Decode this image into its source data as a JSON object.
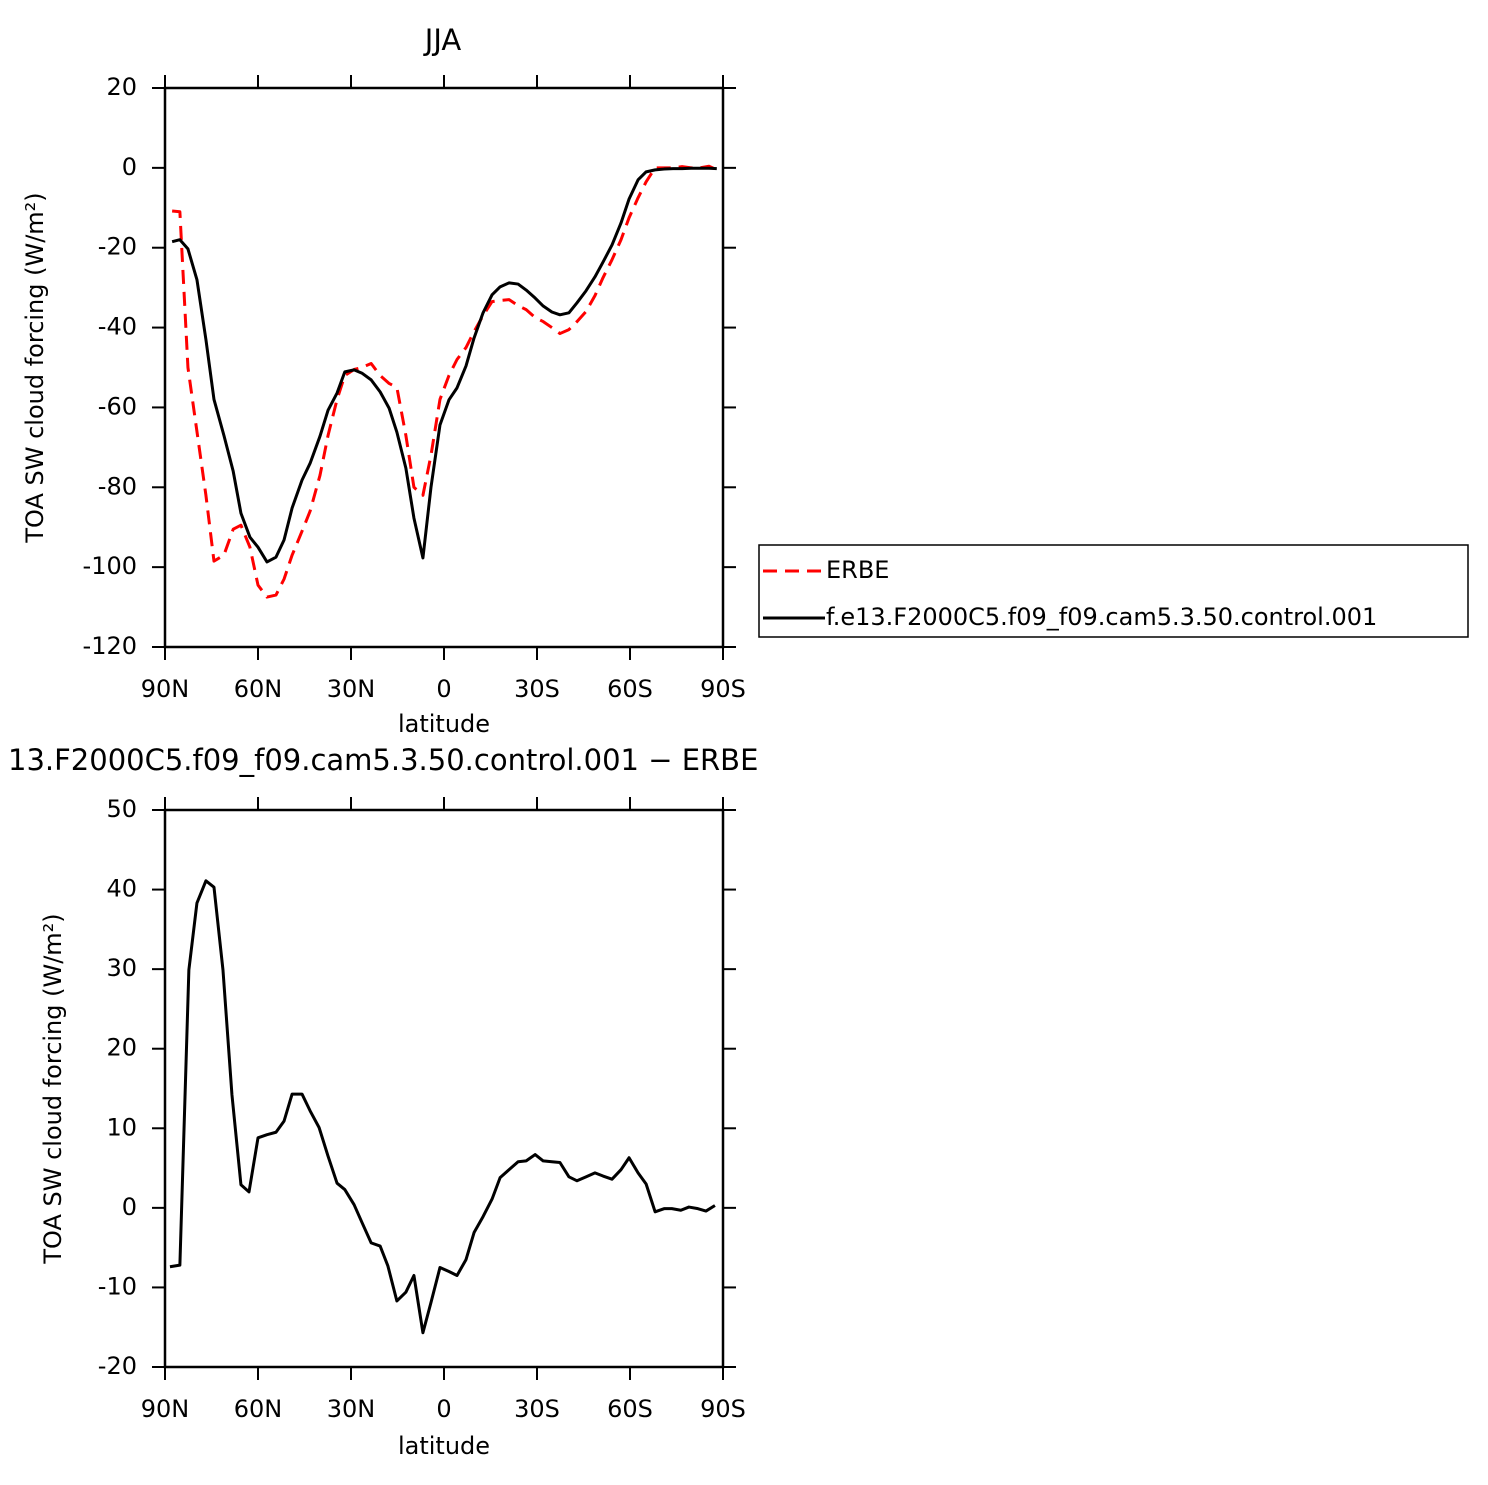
{
  "chart_data": [
    {
      "type": "line",
      "title": "JJA",
      "x_label": "latitude",
      "y_label": "TOA SW cloud forcing (W/m²)",
      "xlim": [
        90,
        -90
      ],
      "xticks": [
        {
          "value": 90,
          "label": "90N"
        },
        {
          "value": 60,
          "label": "60N"
        },
        {
          "value": 30,
          "label": "30N"
        },
        0,
        {
          "value": -30,
          "label": "30S"
        },
        {
          "value": -60,
          "label": "60S"
        },
        {
          "value": -90,
          "label": "90S"
        }
      ],
      "ylim": [
        -120,
        20
      ],
      "yticks": [
        -120,
        -100,
        -80,
        -60,
        -40,
        -20,
        0,
        20
      ],
      "legend": "right",
      "x": [
        87.7,
        85.2,
        82.6,
        79.7,
        76.8,
        74.2,
        71,
        68,
        65.5,
        62.6,
        60,
        57.1,
        54.2,
        51.6,
        49,
        45.8,
        43.2,
        40,
        37.4,
        34.5,
        32,
        29,
        26.5,
        23.5,
        20.6,
        17.7,
        15.2,
        12.3,
        9.7,
        6.8,
        4.2,
        1.3,
        -1.6,
        -4.2,
        -7.1,
        -9.7,
        -12.6,
        -15.5,
        -18.1,
        -21,
        -23.9,
        -26.5,
        -29.4,
        -32,
        -34.8,
        -37.4,
        -40.3,
        -42.9,
        -45.8,
        -48.7,
        -51.3,
        -54.2,
        -57.1,
        -59.7,
        -62.6,
        -65.2,
        -68.1,
        -71,
        -73.9,
        -76.8,
        -79.7,
        -82.6,
        -85.5,
        -88
      ],
      "series": [
        {
          "name": "ERBE",
          "color": "#ff0000",
          "dashed": true,
          "values": [
            -10.8,
            -11,
            -50,
            -66,
            -82,
            -98.5,
            -97,
            -90.5,
            -89.5,
            -95,
            -104.5,
            -107.5,
            -107,
            -103,
            -97,
            -91,
            -86,
            -77,
            -67,
            -58,
            -52,
            -50.5,
            -50,
            -49,
            -52,
            -54,
            -55,
            -67,
            -80,
            -82,
            -72,
            -58,
            -52,
            -48,
            -45,
            -41,
            -37,
            -33.5,
            -33.2,
            -33,
            -34.5,
            -35.5,
            -37.5,
            -38.5,
            -40,
            -41.5,
            -40.5,
            -38.5,
            -36,
            -32,
            -27.5,
            -23,
            -18,
            -12.5,
            -7.5,
            -3.5,
            0,
            0,
            0,
            0.3,
            0,
            0,
            0.4,
            -0.5
          ]
        },
        {
          "name": "f.e13.F2000C5.f09_f09.cam5.3.50.control.001",
          "color": "#000000",
          "dashed": false,
          "values": [
            -18.5,
            -18,
            -20.3,
            -28,
            -43,
            -58,
            -67,
            -76,
            -86.5,
            -92.5,
            -95,
            -98.7,
            -97.5,
            -93.2,
            -85.2,
            -78.2,
            -74,
            -67.2,
            -60.7,
            -56.4,
            -51.1,
            -50.6,
            -51.4,
            -53.1,
            -56.1,
            -60.2,
            -66.2,
            -75.2,
            -87.7,
            -97.7,
            -80,
            -64.4,
            -58.1,
            -55.1,
            -49.6,
            -42.6,
            -36.3,
            -31.8,
            -29.8,
            -28.8,
            -29.1,
            -30.6,
            -32.6,
            -34.6,
            -36.1,
            -36.8,
            -36.3,
            -33.8,
            -30.8,
            -27.3,
            -23.6,
            -19.3,
            -13.8,
            -7.8,
            -3,
            -1,
            -0.5,
            -0.3,
            -0.2,
            -0.2,
            -0.1,
            -0.1,
            -0.1,
            -0.2
          ]
        }
      ]
    },
    {
      "type": "line",
      "title": "13.F2000C5.f09_f09.cam5.3.50.control.001 − ERBE",
      "x_label": "latitude",
      "y_label": "TOA SW cloud forcing (W/m²)",
      "xlim": [
        90,
        -90
      ],
      "xticks": [
        {
          "value": 90,
          "label": "90N"
        },
        {
          "value": 60,
          "label": "60N"
        },
        {
          "value": 30,
          "label": "30N"
        },
        0,
        {
          "value": -30,
          "label": "30S"
        },
        {
          "value": -60,
          "label": "60S"
        },
        {
          "value": -90,
          "label": "90S"
        }
      ],
      "ylim": [
        -20,
        50
      ],
      "yticks": [
        -20,
        -10,
        0,
        10,
        20,
        30,
        40,
        50
      ],
      "x": [
        88.4,
        85.2,
        82.3,
        79.7,
        76.8,
        74.2,
        71.3,
        68.4,
        65.5,
        62.9,
        60,
        57.1,
        54.2,
        51.6,
        49,
        45.8,
        43.2,
        40.3,
        37.4,
        34.5,
        32,
        29,
        26.5,
        23.5,
        20.6,
        18.1,
        15.2,
        12.3,
        9.7,
        6.8,
        4.2,
        1.3,
        -1.6,
        -4.2,
        -7.1,
        -9.7,
        -12.6,
        -15.5,
        -18.1,
        -21,
        -23.9,
        -26.5,
        -29.4,
        -32,
        -34.8,
        -37.4,
        -40.3,
        -42.9,
        -45.8,
        -48.7,
        -51.3,
        -54.2,
        -57.1,
        -59.7,
        -62.6,
        -65.2,
        -68.1,
        -71,
        -73.5,
        -76.4,
        -79,
        -81.9,
        -84.5,
        -87.4
      ],
      "color": "#000000",
      "values": [
        -7.4,
        -7.2,
        29.9,
        38.3,
        41.1,
        40.3,
        29.9,
        14.2,
        2.9,
        2,
        8.8,
        9.2,
        9.5,
        10.9,
        14.3,
        14.3,
        12.2,
        10.1,
        6.5,
        3.1,
        2.3,
        0.4,
        -1.8,
        -4.4,
        -4.8,
        -7.3,
        -11.7,
        -10.6,
        -8.5,
        -15.7,
        -11.9,
        -7.5,
        -8,
        -8.5,
        -6.5,
        -3.1,
        -1.1,
        1.1,
        3.8,
        4.8,
        5.8,
        5.9,
        6.7,
        5.9,
        5.8,
        5.7,
        3.9,
        3.4,
        3.9,
        4.4,
        4,
        3.6,
        4.8,
        6.3,
        4.4,
        3,
        -0.5,
        -0.1,
        -0.1,
        -0.3,
        0.1,
        -0.1,
        -0.4,
        0.3
      ]
    }
  ]
}
